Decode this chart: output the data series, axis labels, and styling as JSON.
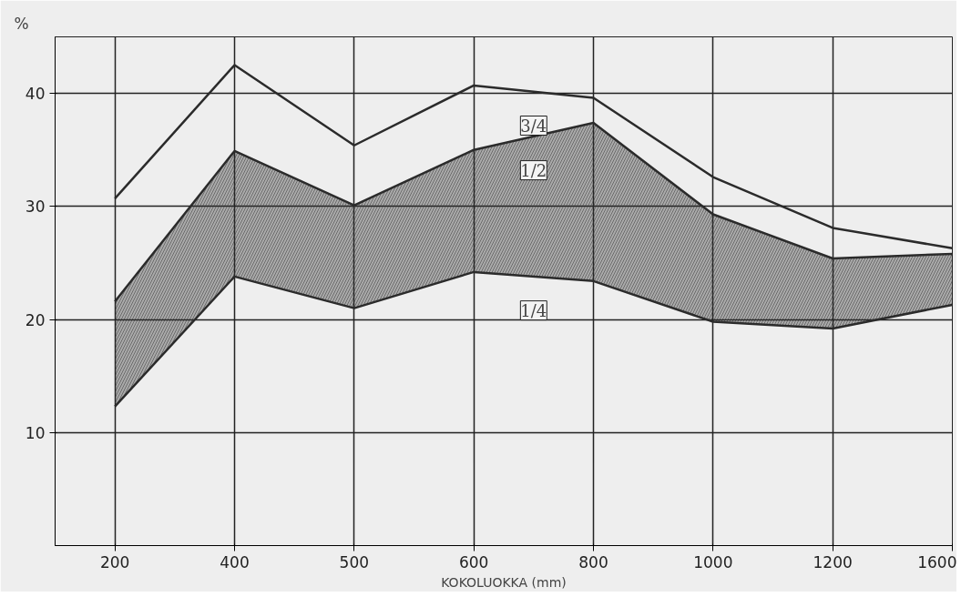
{
  "chart_data": {
    "type": "line",
    "xlabel": "KOKOLUOKKA (mm)",
    "ylabel": "%",
    "categories": [
      "200",
      "400",
      "500",
      "600",
      "800",
      "1000",
      "1200",
      "1600"
    ],
    "ylim": [
      0,
      45
    ],
    "yticks": [
      10,
      20,
      30,
      40
    ],
    "grid": true,
    "marker": "none",
    "line_style": "solid",
    "series": [
      {
        "name": "1/4",
        "color": "#2b2b2b",
        "values": [
          12.3,
          23.8,
          21.0,
          24.2,
          23.4,
          19.8,
          19.2,
          21.3
        ]
      },
      {
        "name": "1/2",
        "color": "#2b2b2b",
        "values": [
          21.6,
          34.9,
          30.1,
          35.0,
          37.4,
          29.3,
          25.4,
          25.8
        ],
        "lower": [
          12.3,
          23.8,
          21.0,
          24.2,
          23.4,
          19.8,
          19.2,
          21.3
        ],
        "upper": [
          21.6,
          34.9,
          30.1,
          35.0,
          37.4,
          29.3,
          25.4,
          25.8
        ]
      },
      {
        "name": "3/4",
        "color": "#2b2b2b",
        "values": [
          30.7,
          42.5,
          35.4,
          40.7,
          39.6,
          32.6,
          28.1,
          26.3
        ]
      }
    ]
  }
}
